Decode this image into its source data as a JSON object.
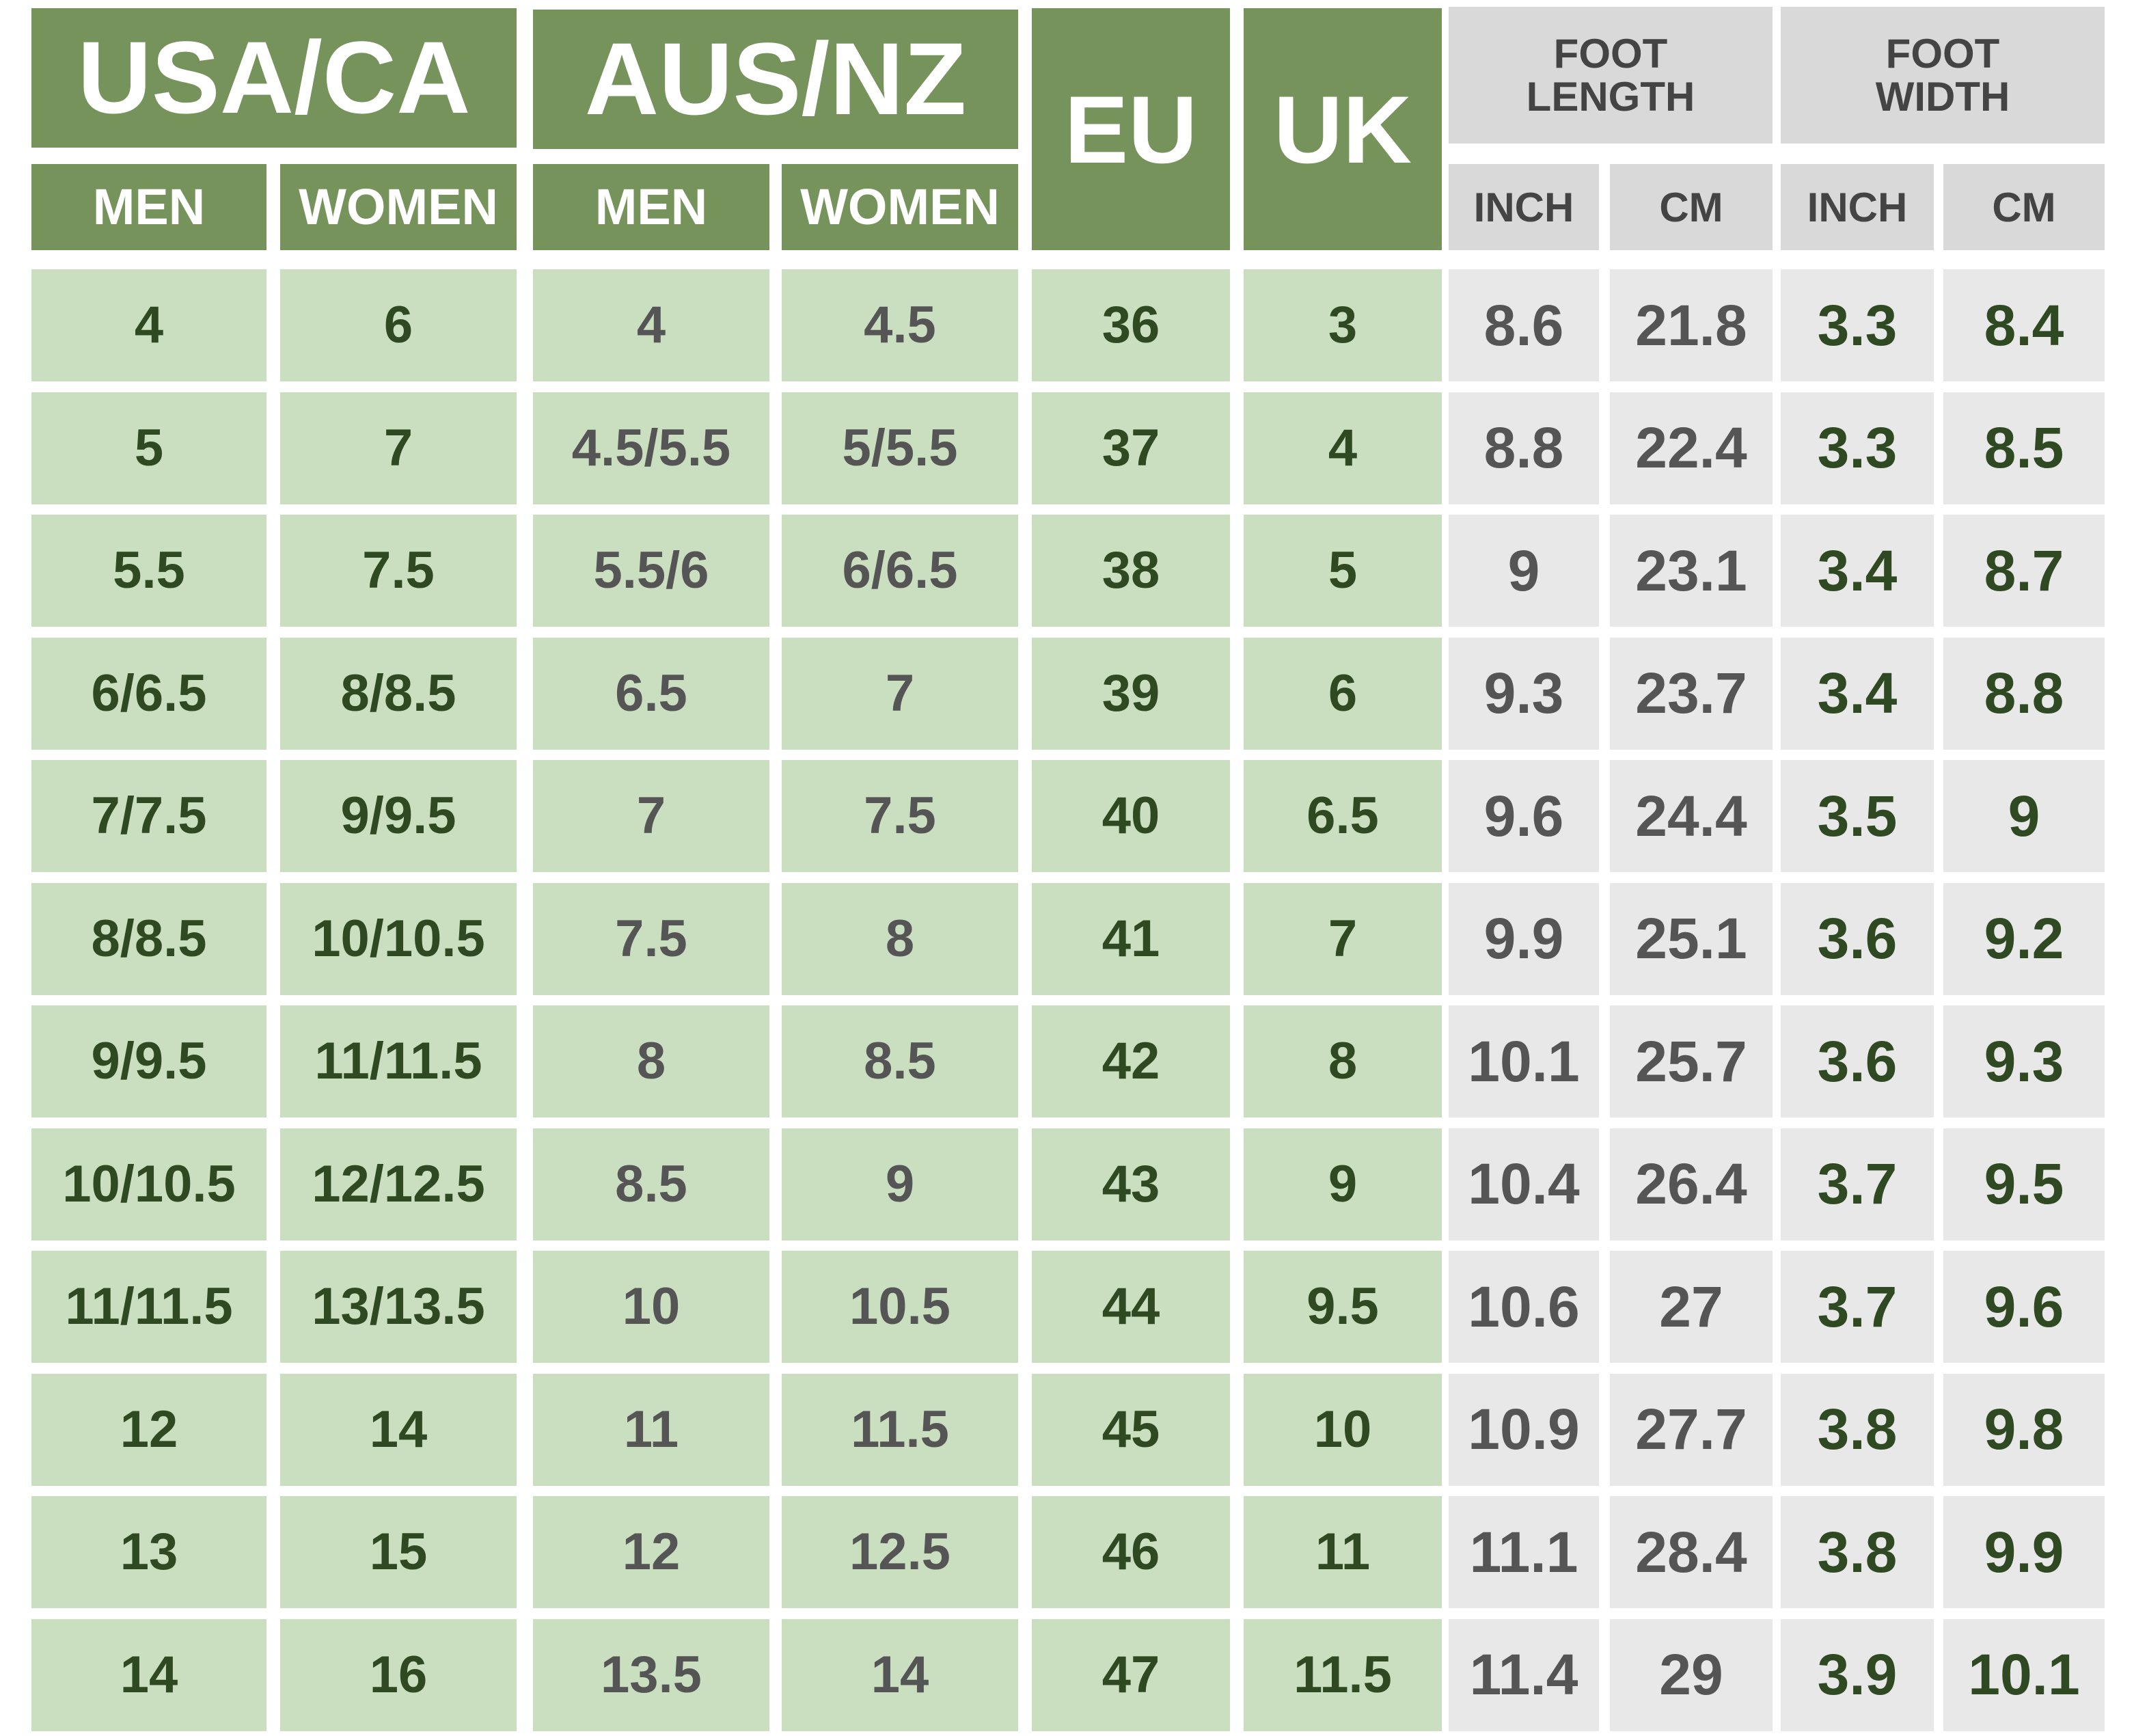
{
  "headers": {
    "groups": [
      "USA/CA",
      "AUS/NZ",
      "EU",
      "UK",
      "FOOT LENGTH",
      "FOOT WIDTH"
    ],
    "subheaders": [
      "MEN",
      "WOMEN",
      "MEN",
      "WOMEN",
      "INCH",
      "CM",
      "INCH",
      "CM"
    ]
  },
  "table": {
    "rows": [
      [
        4,
        6,
        4,
        4.5,
        36,
        3,
        8.6,
        21.8,
        3.3,
        8.4
      ],
      [
        5,
        7,
        "4.5/5.5",
        "5/5.5",
        37,
        4,
        8.8,
        22.4,
        3.3,
        8.5
      ],
      [
        5.5,
        7.5,
        "5.5/6",
        "6/6.5",
        38,
        5,
        9,
        23.1,
        3.4,
        8.7
      ],
      [
        "6/6.5",
        "8/8.5",
        6.5,
        7,
        39,
        6,
        9.3,
        23.7,
        3.4,
        8.8
      ],
      [
        "7/7.5",
        "9/9.5",
        7,
        7.5,
        40,
        6.5,
        9.6,
        24.4,
        3.5,
        9
      ],
      [
        "8/8.5",
        "10/10.5",
        7.5,
        8,
        41,
        7,
        9.9,
        25.1,
        3.6,
        9.2
      ],
      [
        "9/9.5",
        "11/11.5",
        8,
        8.5,
        42,
        8,
        10.1,
        25.7,
        3.6,
        9.3
      ],
      [
        "10/10.5",
        "12/12.5",
        8.5,
        9,
        43,
        9,
        10.4,
        26.4,
        3.7,
        9.5
      ],
      [
        "11/11.5",
        "13/13.5",
        10,
        10.5,
        44,
        9.5,
        10.6,
        27,
        3.7,
        9.6
      ],
      [
        12,
        14,
        11,
        11.5,
        45,
        10,
        10.9,
        27.7,
        3.8,
        9.8
      ],
      [
        13,
        15,
        12,
        12.5,
        46,
        11,
        11.1,
        28.4,
        3.8,
        9.9
      ],
      [
        14,
        16,
        13.5,
        14,
        47,
        11.5,
        11.4,
        29,
        3.9,
        10.1
      ]
    ]
  }
}
